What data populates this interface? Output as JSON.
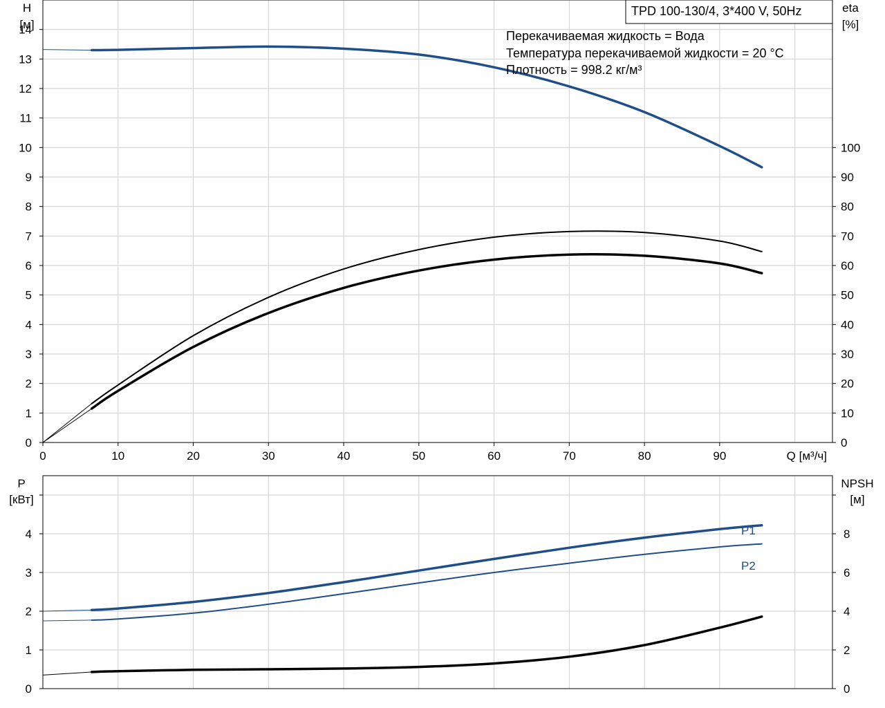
{
  "chart_data": [
    {
      "type": "line",
      "title": "TPD 100-130/4, 3*400 V, 50Hz",
      "annotations": [
        "Перекачиваемая жидкость = Вода",
        "Температура перекачиваемой жидкости = 20 °C",
        "Плотность = 998.2 кг/м³"
      ],
      "xlabel": "Q [м³/ч]",
      "ylabel": [
        "H",
        "[м]"
      ],
      "y2label": [
        "eta",
        "[%]"
      ],
      "xlim": [
        0,
        105
      ],
      "ylim": [
        0,
        15
      ],
      "y2lim": [
        0,
        150
      ],
      "x_ticks": [
        "0",
        "10",
        "20",
        "30",
        "40",
        "50",
        "60",
        "70",
        "80",
        "90"
      ],
      "y_ticks": [
        "0",
        "1",
        "2",
        "3",
        "4",
        "5",
        "6",
        "7",
        "8",
        "9",
        "10",
        "11",
        "12",
        "13",
        "14"
      ],
      "y2_ticks": [
        "0",
        "10",
        "20",
        "30",
        "40",
        "50",
        "60",
        "70",
        "80",
        "90",
        "100"
      ],
      "grid": true,
      "series": [
        {
          "name": "",
          "axis": "y",
          "color": "#1f4e88",
          "extension_x": [
            0,
            6.5
          ],
          "extension_y": [
            13.32,
            13.3
          ],
          "x": [
            6.5,
            10,
            20,
            30,
            40,
            50,
            60,
            70,
            80,
            90,
            95.6
          ],
          "y": [
            13.3,
            13.31,
            13.37,
            13.42,
            13.35,
            13.15,
            12.72,
            12.07,
            11.2,
            10.05,
            9.33
          ]
        },
        {
          "name": "",
          "axis": "y2",
          "color": "#000000",
          "extension_x": [
            0,
            6.5
          ],
          "extension_y": [
            0,
            13.2
          ],
          "x": [
            6.5,
            10,
            20,
            30,
            40,
            50,
            60,
            70,
            80,
            90,
            95.6
          ],
          "y": [
            13.2,
            19.5,
            36.2,
            49.2,
            58.8,
            65.4,
            69.6,
            71.5,
            71.2,
            68.3,
            64.7
          ]
        },
        {
          "name": "",
          "axis": "y2",
          "color": "#000000",
          "extension_x": [
            0,
            6.5
          ],
          "extension_y": [
            0,
            11.5
          ],
          "x": [
            6.5,
            10,
            20,
            30,
            40,
            50,
            60,
            70,
            80,
            90,
            95.6
          ],
          "y": [
            11.5,
            17.5,
            32.4,
            43.9,
            52.4,
            58.3,
            62.0,
            63.7,
            63.3,
            60.7,
            57.4
          ]
        }
      ]
    },
    {
      "type": "line",
      "ylabel": [
        "P",
        "[кВт]"
      ],
      "y2label": [
        "NPSH",
        "[м]"
      ],
      "xlim": [
        0,
        105
      ],
      "ylim": [
        0,
        5.5
      ],
      "y2lim": [
        0,
        11
      ],
      "y_ticks": [
        "0",
        "1",
        "2",
        "3",
        "4"
      ],
      "y2_ticks": [
        "0",
        "2",
        "4",
        "6",
        "8"
      ],
      "grid": true,
      "series": [
        {
          "name": "P1",
          "axis": "y",
          "color": "#1f4e88",
          "extension_x": [
            0,
            6.5
          ],
          "extension_y": [
            2.0,
            2.03
          ],
          "x": [
            6.5,
            10,
            20,
            30,
            40,
            50,
            60,
            70,
            80,
            90,
            95.6
          ],
          "y": [
            2.03,
            2.07,
            2.24,
            2.47,
            2.75,
            3.05,
            3.35,
            3.64,
            3.9,
            4.12,
            4.22
          ]
        },
        {
          "name": "P2",
          "axis": "y",
          "color": "#1f4e88",
          "extension_x": [
            0,
            6.5
          ],
          "extension_y": [
            1.75,
            1.77
          ],
          "x": [
            6.5,
            10,
            20,
            30,
            40,
            50,
            60,
            70,
            80,
            90,
            95.6
          ],
          "y": [
            1.77,
            1.8,
            1.95,
            2.18,
            2.45,
            2.73,
            3.0,
            3.24,
            3.47,
            3.66,
            3.74
          ]
        },
        {
          "name": "",
          "axis": "y2",
          "color": "#000000",
          "extension_x": [
            0,
            6.5
          ],
          "extension_y": [
            0.7,
            0.86
          ],
          "x": [
            6.5,
            10,
            20,
            30,
            40,
            50,
            60,
            70,
            80,
            90,
            95.6
          ],
          "y": [
            0.86,
            0.9,
            0.97,
            1.0,
            1.04,
            1.12,
            1.3,
            1.65,
            2.25,
            3.15,
            3.72
          ]
        }
      ]
    }
  ]
}
